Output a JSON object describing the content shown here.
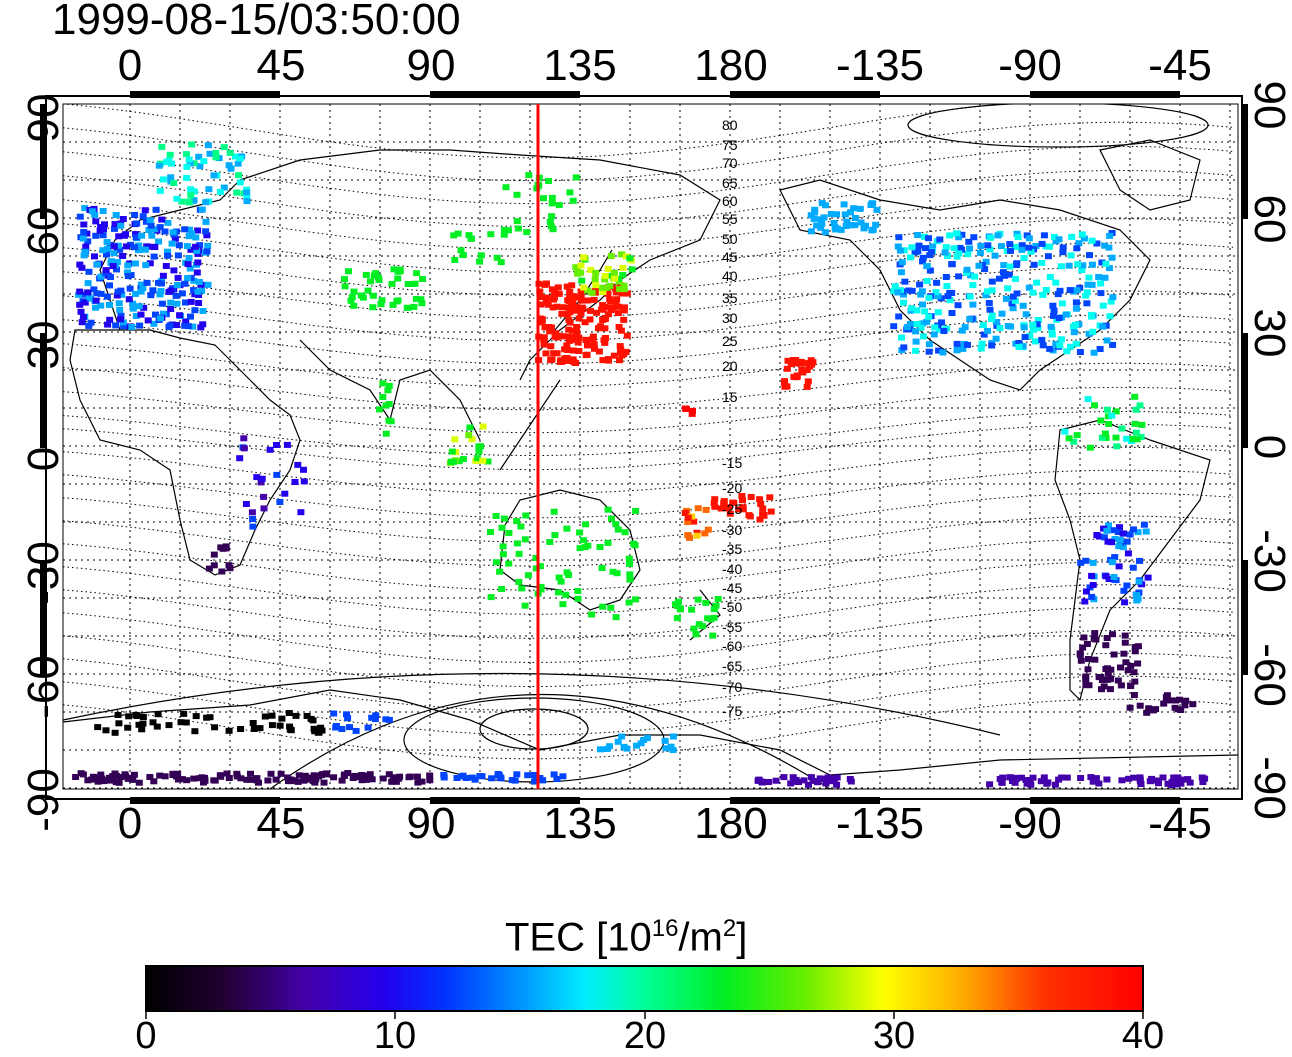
{
  "timestamp": "1999-08-15/03:50:00",
  "map": {
    "lon_ticks_top": [
      "0",
      "45",
      "90",
      "135",
      "180",
      "-135",
      "-90",
      "-45"
    ],
    "lon_ticks_bottom": [
      "0",
      "45",
      "90",
      "135",
      "180",
      "-135",
      "-90",
      "-45"
    ],
    "lat_ticks_left": [
      "90",
      "60",
      "30",
      "0",
      "-30",
      "-60",
      "-90"
    ],
    "lat_ticks_right": [
      "90",
      "60",
      "30",
      "0",
      "-30",
      "-60",
      "-90"
    ],
    "contour_labels": [
      "80",
      "75",
      "70",
      "65",
      "60",
      "55",
      "50",
      "45",
      "40",
      "35",
      "30",
      "25",
      "20",
      "15",
      "-15",
      "-20",
      "-25",
      "-30",
      "-35",
      "-40",
      "-45",
      "-50",
      "-55",
      "-60",
      "-65",
      "-70",
      "-75"
    ],
    "meridian_line_color": "#ff0000"
  },
  "colorbar": {
    "title_main": "TEC  [10",
    "title_sup1": "16",
    "title_mid": "/m",
    "title_sup2": "2",
    "title_end": "]",
    "ticks": [
      "0",
      "10",
      "20",
      "30",
      "40"
    ],
    "min": 0,
    "max": 40,
    "colors": [
      "#000000",
      "#330055",
      "#4400aa",
      "#2200ee",
      "#0044ff",
      "#00aaff",
      "#00ffee",
      "#00ff88",
      "#00ee22",
      "#66ee00",
      "#ddff00",
      "#ffcc00",
      "#ff6600",
      "#ff1100",
      "#ff0000"
    ]
  }
}
